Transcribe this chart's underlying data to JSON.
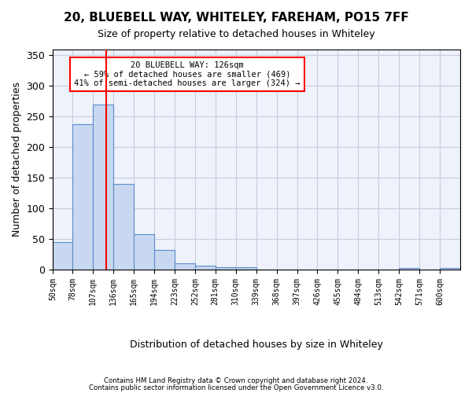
{
  "title1": "20, BLUEBELL WAY, WHITELEY, FAREHAM, PO15 7FF",
  "title2": "Size of property relative to detached houses in Whiteley",
  "xlabel": "Distribution of detached houses by size in Whiteley",
  "ylabel": "Number of detached properties",
  "footer1": "Contains HM Land Registry data © Crown copyright and database right 2024.",
  "footer2": "Contains public sector information licensed under the Open Government Licence v3.0.",
  "annotation_line1": "20 BLUEBELL WAY: 126sqm",
  "annotation_line2": "← 59% of detached houses are smaller (469)",
  "annotation_line3": "41% of semi-detached houses are larger (324) →",
  "bar_edges": [
    50,
    78,
    107,
    136,
    165,
    194,
    223,
    252,
    281,
    310,
    339,
    368,
    397,
    426,
    455,
    484,
    513,
    542,
    571,
    600,
    629
  ],
  "bar_heights": [
    45,
    237,
    270,
    140,
    57,
    32,
    10,
    6,
    3,
    3,
    0,
    0,
    0,
    0,
    0,
    0,
    0,
    2,
    0,
    2
  ],
  "bar_color": "#c8d8f0",
  "bar_edge_color": "#5b8dc8",
  "grid_color": "#c8ccdd",
  "bg_color": "#eef2fa",
  "red_line_x": 126,
  "ylim": [
    0,
    360
  ],
  "yticks": [
    0,
    50,
    100,
    150,
    200,
    250,
    300,
    350
  ]
}
